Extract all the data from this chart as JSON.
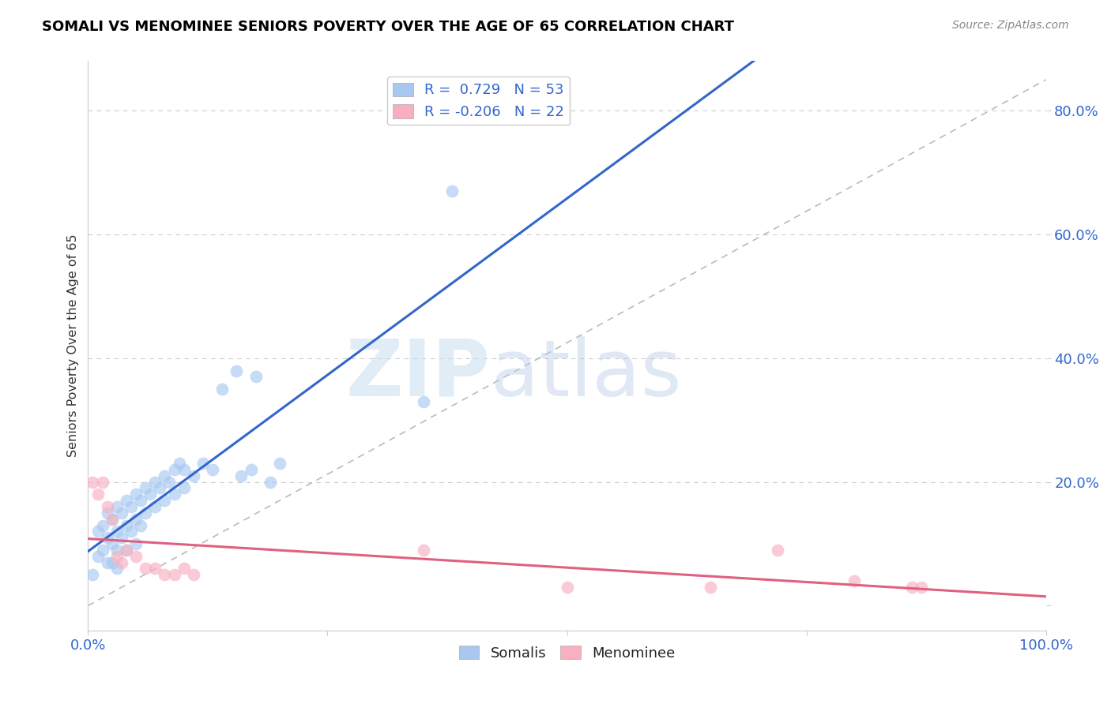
{
  "title": "SOMALI VS MENOMINEE SENIORS POVERTY OVER THE AGE OF 65 CORRELATION CHART",
  "source": "Source: ZipAtlas.com",
  "ylabel": "Seniors Poverty Over the Age of 65",
  "xlim": [
    0,
    1.0
  ],
  "ylim": [
    -0.04,
    0.88
  ],
  "somali_R": 0.729,
  "somali_N": 53,
  "menominee_R": -0.206,
  "menominee_N": 22,
  "somali_color": "#a8c8f0",
  "menominee_color": "#f8b0c0",
  "somali_line_color": "#3366cc",
  "menominee_line_color": "#e06080",
  "diagonal_color": "#bbbbbb",
  "somali_x": [
    0.005,
    0.01,
    0.01,
    0.015,
    0.015,
    0.02,
    0.02,
    0.02,
    0.025,
    0.025,
    0.025,
    0.03,
    0.03,
    0.03,
    0.03,
    0.035,
    0.035,
    0.04,
    0.04,
    0.04,
    0.045,
    0.045,
    0.05,
    0.05,
    0.05,
    0.055,
    0.055,
    0.06,
    0.06,
    0.065,
    0.07,
    0.07,
    0.075,
    0.08,
    0.08,
    0.085,
    0.09,
    0.09,
    0.095,
    0.1,
    0.1,
    0.11,
    0.12,
    0.13,
    0.14,
    0.155,
    0.16,
    0.17,
    0.175,
    0.19,
    0.2,
    0.35,
    0.38
  ],
  "somali_y": [
    0.05,
    0.12,
    0.08,
    0.13,
    0.09,
    0.15,
    0.11,
    0.07,
    0.14,
    0.1,
    0.07,
    0.16,
    0.12,
    0.09,
    0.06,
    0.15,
    0.11,
    0.17,
    0.13,
    0.09,
    0.16,
    0.12,
    0.18,
    0.14,
    0.1,
    0.17,
    0.13,
    0.19,
    0.15,
    0.18,
    0.2,
    0.16,
    0.19,
    0.21,
    0.17,
    0.2,
    0.22,
    0.18,
    0.23,
    0.22,
    0.19,
    0.21,
    0.23,
    0.22,
    0.35,
    0.38,
    0.21,
    0.22,
    0.37,
    0.2,
    0.23,
    0.33,
    0.67
  ],
  "menominee_x": [
    0.005,
    0.01,
    0.015,
    0.02,
    0.025,
    0.03,
    0.035,
    0.04,
    0.05,
    0.06,
    0.07,
    0.08,
    0.09,
    0.1,
    0.11,
    0.35,
    0.5,
    0.65,
    0.72,
    0.8,
    0.86,
    0.87
  ],
  "menominee_y": [
    0.2,
    0.18,
    0.2,
    0.16,
    0.14,
    0.08,
    0.07,
    0.09,
    0.08,
    0.06,
    0.06,
    0.05,
    0.05,
    0.06,
    0.05,
    0.09,
    0.03,
    0.03,
    0.09,
    0.04,
    0.03,
    0.03
  ],
  "yticks": [
    0.0,
    0.2,
    0.4,
    0.6,
    0.8
  ],
  "ytick_labels": [
    "",
    "20.0%",
    "40.0%",
    "60.0%",
    "80.0%"
  ],
  "xticks": [
    0.0,
    0.25,
    0.5,
    0.75,
    1.0
  ],
  "xtick_labels": [
    "0.0%",
    "",
    "",
    "",
    "100.0%"
  ]
}
